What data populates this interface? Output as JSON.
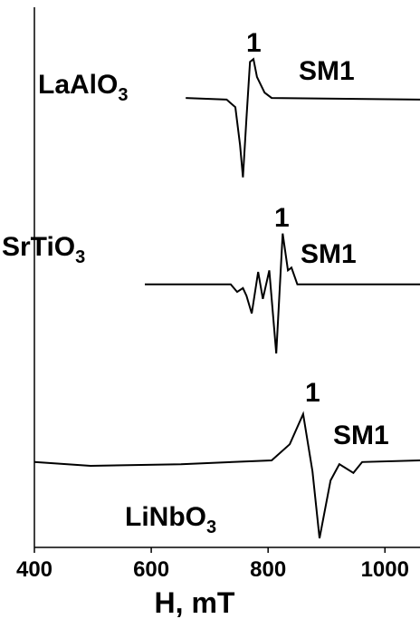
{
  "chart_data": {
    "type": "line",
    "xlabel": "H, mT",
    "xlim": [
      400,
      1060
    ],
    "xticks": [
      400,
      600,
      800,
      1000
    ],
    "ylim": [
      0,
      100
    ],
    "series": [
      {
        "name": "LaAlO3",
        "color": "#000000",
        "x": [
          659,
          729,
          744,
          752,
          757,
          763,
          769,
          775,
          781,
          794,
          806,
          1060
        ],
        "values": [
          83.2,
          82.9,
          81.5,
          74.5,
          68.5,
          79.5,
          89.9,
          90.4,
          87.1,
          84.2,
          83.2,
          82.9
        ]
      },
      {
        "name": "SrTiO3",
        "color": "#000000",
        "x": [
          589,
          736,
          747,
          757,
          763,
          772,
          783,
          791,
          802,
          814,
          825,
          834,
          840,
          850,
          1060
        ],
        "values": [
          48.7,
          48.7,
          47.3,
          48.0,
          46.6,
          43.3,
          51.0,
          46.0,
          51.3,
          35.9,
          58.1,
          51.3,
          51.8,
          48.7,
          48.7
        ]
      },
      {
        "name": "LiNbO3",
        "color": "#000000",
        "x": [
          400,
          496,
          651,
          806,
          837,
          860,
          876,
          888,
          907,
          922,
          946,
          961,
          1060
        ],
        "values": [
          15.8,
          15.1,
          15.4,
          16.1,
          19.1,
          24.7,
          14.1,
          1.7,
          12.4,
          15.4,
          13.8,
          15.8,
          16.1
        ]
      }
    ],
    "annotations": [
      "1",
      "SM1",
      "1",
      "SM1",
      "1",
      "SM1"
    ]
  }
}
